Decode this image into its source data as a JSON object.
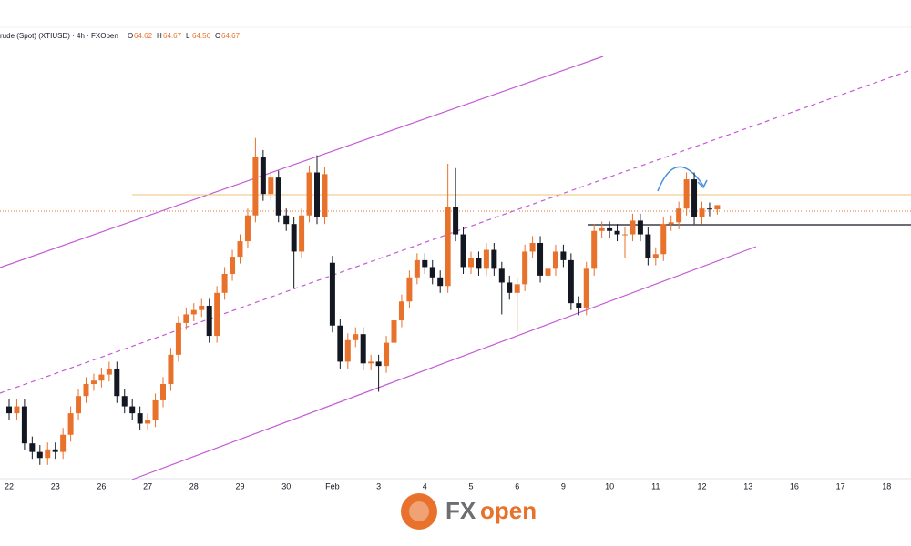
{
  "chart_data": {
    "type": "candlestick",
    "header": {
      "symbol": "rude (Spot) (XTIUSD) · 4h · FXOpen",
      "ohlc": [
        {
          "label": "O",
          "value": 64.62
        },
        {
          "label": "H",
          "value": 64.67
        },
        {
          "label": "L",
          "value": 64.56
        },
        {
          "label": "C",
          "value": 64.67
        }
      ]
    },
    "brand": [
      "FX",
      "open"
    ],
    "up_color": "#e8712b",
    "down_color": "#131722",
    "ylim": [
      61.5,
      66.6
    ],
    "categories": [
      "22",
      null,
      null,
      null,
      null,
      null,
      "23",
      null,
      null,
      null,
      null,
      null,
      "26",
      null,
      null,
      null,
      null,
      null,
      "27",
      null,
      null,
      null,
      null,
      null,
      "28",
      null,
      null,
      null,
      null,
      null,
      "29",
      null,
      null,
      null,
      null,
      null,
      "30",
      null,
      null,
      null,
      null,
      null,
      "Feb",
      null,
      null,
      null,
      null,
      null,
      "3",
      null,
      null,
      null,
      null,
      null,
      "4",
      null,
      null,
      null,
      null,
      null,
      "5",
      null,
      null,
      null,
      null,
      null,
      "6",
      null,
      null,
      null,
      null,
      null,
      "9",
      null,
      null,
      null,
      null,
      null,
      "10",
      null,
      null,
      null,
      null,
      null,
      "11",
      null,
      null,
      null,
      null,
      null,
      "12",
      null,
      null,
      null,
      null,
      null,
      "13",
      null,
      null,
      null,
      null,
      null,
      "16",
      null,
      null,
      null,
      null,
      null,
      "17",
      null,
      null,
      null,
      null,
      null,
      "18",
      null,
      null,
      null,
      null,
      null
    ],
    "open": [
      62.33,
      62.25,
      62.33,
      61.9,
      61.8,
      61.73,
      61.83,
      61.8,
      62.0,
      62.25,
      62.45,
      62.59,
      62.63,
      62.7,
      62.77,
      62.45,
      62.33,
      62.25,
      62.13,
      62.17,
      62.4,
      62.59,
      62.93,
      63.3,
      63.4,
      63.45,
      63.5,
      63.15,
      63.65,
      63.87,
      64.07,
      64.25,
      64.55,
      65.23,
      64.8,
      64.99,
      64.55,
      64.45,
      64.13,
      64.55,
      65.05,
      64.53,
      64.0,
      63.27,
      62.85,
      63.1,
      63.17,
      62.83,
      62.85,
      62.8,
      63.07,
      63.33,
      63.55,
      63.83,
      64.03,
      63.95,
      63.83,
      63.73,
      64.65,
      64.33,
      63.95,
      64.05,
      63.93,
      64.15,
      63.93,
      63.77,
      63.65,
      63.75,
      64.13,
      64.23,
      63.85,
      63.93,
      64.13,
      64.03,
      63.53,
      63.47,
      63.93,
      64.37,
      64.4,
      64.37,
      64.33,
      64.33,
      64.49,
      64.33,
      64.05,
      64.1,
      64.45,
      64.47,
      64.63,
      64.97,
      64.53,
      64.63,
      64.62,
      null,
      null,
      null,
      null,
      null,
      null,
      null,
      null,
      null,
      null,
      null,
      null,
      null,
      null,
      null,
      null,
      null,
      null,
      null,
      null,
      null,
      null,
      null,
      null,
      null,
      null,
      null
    ],
    "high": [
      62.41,
      62.41,
      62.41,
      61.98,
      61.88,
      61.91,
      61.91,
      62.08,
      62.33,
      62.53,
      62.67,
      62.71,
      62.78,
      62.85,
      62.85,
      62.53,
      62.41,
      62.33,
      62.25,
      62.48,
      62.67,
      63.01,
      63.38,
      63.48,
      63.53,
      63.58,
      63.58,
      63.73,
      63.95,
      64.15,
      64.33,
      64.63,
      65.45,
      65.31,
      65.07,
      65.07,
      64.63,
      64.53,
      64.63,
      65.13,
      65.25,
      65.11,
      64.08,
      63.35,
      63.18,
      63.25,
      63.25,
      62.93,
      62.93,
      63.15,
      63.41,
      63.63,
      63.91,
      64.11,
      64.11,
      64.03,
      63.91,
      65.15,
      65.1,
      64.41,
      64.13,
      64.13,
      64.23,
      64.23,
      64.01,
      63.85,
      63.83,
      64.21,
      64.31,
      64.31,
      64.01,
      64.21,
      64.21,
      64.11,
      63.61,
      64.01,
      64.45,
      64.48,
      64.48,
      64.45,
      64.41,
      64.57,
      64.57,
      64.41,
      64.18,
      64.53,
      64.55,
      64.71,
      65.05,
      65.05,
      64.71,
      64.7,
      64.67,
      null,
      null,
      null,
      null,
      null,
      null,
      null,
      null,
      null,
      null,
      null,
      null,
      null,
      null,
      null,
      null,
      null,
      null,
      null,
      null,
      null,
      null,
      null,
      null,
      null,
      null,
      null
    ],
    "low": [
      62.17,
      62.17,
      61.82,
      61.72,
      61.65,
      61.65,
      61.72,
      61.72,
      61.92,
      62.17,
      62.37,
      62.51,
      62.55,
      62.62,
      62.37,
      62.25,
      62.17,
      62.05,
      62.05,
      62.09,
      62.32,
      62.51,
      62.85,
      63.22,
      63.32,
      63.37,
      63.07,
      63.07,
      63.57,
      63.79,
      63.99,
      64.17,
      64.47,
      64.72,
      64.72,
      64.47,
      64.37,
      63.7,
      64.05,
      64.47,
      64.45,
      64.45,
      63.19,
      62.77,
      62.77,
      63.02,
      62.75,
      62.75,
      62.5,
      62.72,
      62.99,
      63.25,
      63.47,
      63.75,
      63.87,
      63.75,
      63.65,
      63.65,
      64.25,
      63.87,
      63.87,
      63.85,
      63.85,
      63.85,
      63.4,
      63.57,
      63.2,
      63.67,
      64.05,
      63.77,
      63.2,
      63.85,
      63.95,
      63.45,
      63.39,
      63.39,
      63.85,
      64.29,
      64.29,
      64.25,
      64.05,
      64.25,
      64.25,
      63.97,
      63.97,
      64.02,
      64.37,
      64.39,
      64.55,
      64.45,
      64.45,
      64.54,
      64.56,
      null,
      null,
      null,
      null,
      null,
      null,
      null,
      null,
      null,
      null,
      null,
      null,
      null,
      null,
      null,
      null,
      null,
      null,
      null,
      null,
      null,
      null,
      null,
      null,
      null,
      null,
      null
    ],
    "close": [
      62.25,
      62.33,
      61.9,
      61.8,
      61.73,
      61.83,
      61.8,
      62.0,
      62.25,
      62.45,
      62.59,
      62.63,
      62.7,
      62.77,
      62.45,
      62.33,
      62.25,
      62.13,
      62.17,
      62.4,
      62.59,
      62.93,
      63.3,
      63.4,
      63.45,
      63.5,
      63.15,
      63.65,
      63.87,
      64.07,
      64.25,
      64.55,
      65.23,
      64.8,
      64.99,
      64.55,
      64.45,
      64.13,
      64.55,
      65.05,
      64.53,
      65.03,
      63.27,
      62.85,
      63.1,
      63.17,
      62.83,
      62.85,
      62.8,
      63.07,
      63.33,
      63.55,
      63.83,
      64.03,
      63.95,
      63.83,
      63.73,
      64.65,
      64.33,
      63.95,
      64.05,
      63.93,
      64.15,
      63.93,
      63.77,
      63.65,
      63.75,
      64.13,
      64.23,
      63.85,
      63.93,
      64.13,
      64.03,
      63.53,
      63.47,
      63.93,
      64.37,
      64.4,
      64.37,
      64.33,
      64.33,
      64.49,
      64.33,
      64.05,
      64.1,
      64.45,
      64.47,
      64.63,
      64.97,
      64.53,
      64.63,
      64.62,
      64.67,
      null,
      null,
      null,
      null,
      null,
      null,
      null,
      null,
      null,
      null,
      null,
      null,
      null,
      null,
      null,
      null,
      null,
      null,
      null,
      null,
      null,
      null,
      null,
      null,
      null,
      null,
      null
    ]
  }
}
